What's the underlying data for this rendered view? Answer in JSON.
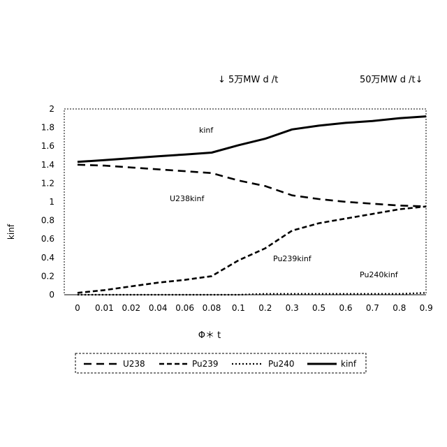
{
  "chart_data": {
    "type": "line",
    "categories": [
      "0",
      "0.01",
      "0.02",
      "0.04",
      "0.06",
      "0.08",
      "0.1",
      "0.2",
      "0.3",
      "0.5",
      "0.6",
      "0.7",
      "0.8",
      "0.9"
    ],
    "series": [
      {
        "name": "U238",
        "values": [
          1.4,
          1.39,
          1.37,
          1.35,
          1.33,
          1.31,
          1.23,
          1.17,
          1.07,
          1.03,
          1.0,
          0.98,
          0.96,
          0.95
        ]
      },
      {
        "name": "Pu239",
        "values": [
          0.02,
          0.05,
          0.09,
          0.13,
          0.16,
          0.2,
          0.37,
          0.5,
          0.69,
          0.77,
          0.82,
          0.87,
          0.92,
          0.95
        ]
      },
      {
        "name": "Pu240",
        "values": [
          0.0,
          0.0,
          0.0,
          0.0,
          0.0,
          0.0,
          0.0,
          0.01,
          0.01,
          0.01,
          0.01,
          0.01,
          0.01,
          0.02
        ]
      },
      {
        "name": "kinf",
        "values": [
          1.43,
          1.45,
          1.47,
          1.49,
          1.51,
          1.53,
          1.61,
          1.68,
          1.78,
          1.82,
          1.85,
          1.87,
          1.9,
          1.92
        ]
      }
    ],
    "xlabel": "Φ＊ t",
    "ylabel": "kinf",
    "ylim": [
      0,
      2
    ],
    "yticks": [
      "0",
      "0.2",
      "0.4",
      "0.6",
      "0.8",
      "1",
      "1.2",
      "1.4",
      "1.6",
      "1.8",
      "2"
    ],
    "legend": "bottom",
    "grid": false,
    "annotations": {
      "top_left": "↓ 5万MW d /t",
      "top_right": "50万MW d /t↓",
      "kinf": "kinf",
      "u238": "U238kinf",
      "pu239": "Pu239kinf",
      "pu240": "Pu240kinf"
    },
    "line_color": "#000000"
  }
}
